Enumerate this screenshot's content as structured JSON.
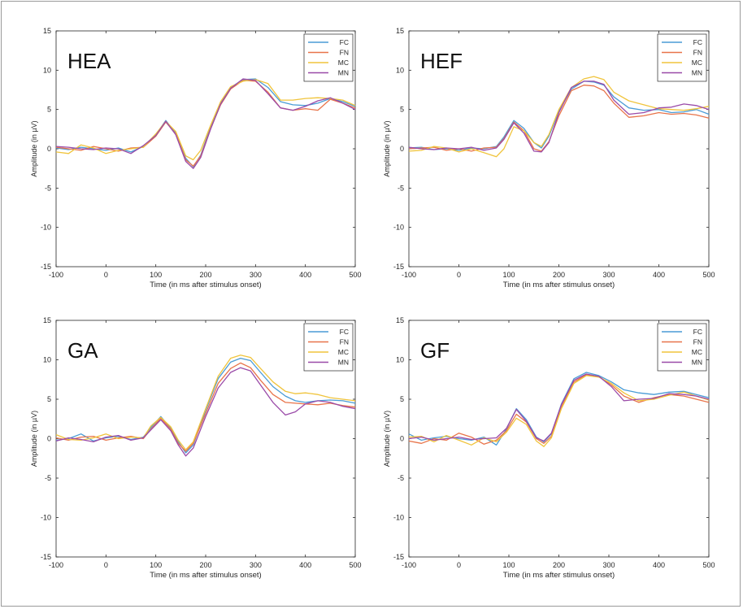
{
  "series_style": [
    {
      "name": "FC",
      "color": "#4a9cd6"
    },
    {
      "name": "FN",
      "color": "#e8744a"
    },
    {
      "name": "MC",
      "color": "#f0c43c"
    },
    {
      "name": "MN",
      "color": "#9a4aa8"
    }
  ],
  "chart_data": [
    {
      "type": "line",
      "title": "HEA",
      "xlabel": "Time (in ms after stimulus onset)",
      "ylabel": "Amplitude (in µV)",
      "xlim": [
        -100,
        500
      ],
      "ylim": [
        -15,
        15
      ],
      "xticks": [
        -100,
        0,
        100,
        200,
        300,
        400,
        500
      ],
      "yticks": [
        15,
        10,
        5,
        0,
        -5,
        -10,
        -15
      ],
      "legend": "top-right",
      "x": [
        -100,
        -75,
        -50,
        -25,
        0,
        25,
        50,
        75,
        100,
        120,
        140,
        160,
        175,
        190,
        210,
        230,
        250,
        275,
        300,
        325,
        350,
        375,
        400,
        425,
        450,
        475,
        500
      ],
      "series": [
        {
          "name": "FC",
          "values": [
            0.1,
            -0.1,
            0.2,
            0.0,
            -0.2,
            0.1,
            -0.4,
            0.3,
            1.8,
            3.6,
            2.0,
            -1.2,
            -2.3,
            -0.8,
            2.8,
            5.8,
            7.8,
            8.8,
            8.9,
            7.8,
            6.0,
            5.6,
            5.5,
            5.8,
            6.4,
            6.0,
            5.4
          ]
        },
        {
          "name": "FN",
          "values": [
            0.2,
            0.0,
            -0.2,
            0.3,
            0.0,
            -0.3,
            0.1,
            0.2,
            1.6,
            3.4,
            1.9,
            -1.4,
            -2.2,
            -0.9,
            2.6,
            5.6,
            7.6,
            8.7,
            8.6,
            7.2,
            5.2,
            4.9,
            5.1,
            4.9,
            6.3,
            5.8,
            5.2
          ]
        },
        {
          "name": "MC",
          "values": [
            -0.4,
            -0.6,
            0.5,
            0.1,
            -0.6,
            -0.2,
            0.0,
            0.2,
            1.9,
            3.5,
            2.2,
            -0.9,
            -1.4,
            -0.2,
            3.0,
            6.0,
            7.9,
            8.6,
            8.8,
            8.3,
            6.2,
            6.2,
            6.4,
            6.5,
            6.4,
            6.2,
            5.5
          ]
        },
        {
          "name": "MN",
          "values": [
            0.3,
            0.2,
            0.0,
            -0.1,
            0.1,
            0.0,
            -0.6,
            0.4,
            1.7,
            3.5,
            1.8,
            -1.6,
            -2.5,
            -1.1,
            2.5,
            5.7,
            7.7,
            8.9,
            8.7,
            7.0,
            5.2,
            4.9,
            5.4,
            6.1,
            6.5,
            5.8,
            5.0
          ]
        }
      ]
    },
    {
      "type": "line",
      "title": "HEF",
      "xlabel": "Time (in ms after stimulus onset)",
      "ylabel": "Amplitude (in µV)",
      "xlim": [
        -100,
        500
      ],
      "ylim": [
        -15,
        15
      ],
      "xticks": [
        -100,
        0,
        100,
        200,
        300,
        400,
        500
      ],
      "yticks": [
        15,
        10,
        5,
        0,
        -5,
        -10,
        -15
      ],
      "legend": "top-right",
      "x": [
        -100,
        -75,
        -50,
        -25,
        0,
        25,
        50,
        75,
        90,
        110,
        130,
        150,
        165,
        180,
        200,
        225,
        250,
        270,
        290,
        310,
        340,
        370,
        400,
        425,
        450,
        475,
        500
      ],
      "series": [
        {
          "name": "FC",
          "values": [
            0.1,
            0.2,
            -0.1,
            0.0,
            -0.2,
            0.1,
            0.0,
            0.3,
            1.5,
            3.6,
            2.6,
            0.8,
            0.1,
            1.6,
            4.8,
            7.6,
            8.6,
            8.5,
            8.1,
            6.6,
            5.2,
            4.9,
            5.0,
            4.6,
            4.7,
            5.0,
            4.4
          ]
        },
        {
          "name": "FN",
          "values": [
            0.0,
            0.1,
            0.2,
            -0.2,
            0.0,
            -0.3,
            0.1,
            0.2,
            1.3,
            3.4,
            2.3,
            0.0,
            -0.3,
            0.9,
            4.2,
            7.4,
            8.1,
            8.0,
            7.4,
            5.8,
            4.0,
            4.2,
            4.6,
            4.4,
            4.5,
            4.3,
            3.9
          ]
        },
        {
          "name": "MC",
          "values": [
            -0.3,
            -0.2,
            0.3,
            0.1,
            -0.4,
            0.0,
            -0.5,
            -1.0,
            0.0,
            2.8,
            2.3,
            0.8,
            0.3,
            1.8,
            5.0,
            7.8,
            8.9,
            9.2,
            8.8,
            7.2,
            6.1,
            5.6,
            5.1,
            5.0,
            4.9,
            5.1,
            5.4
          ]
        },
        {
          "name": "MN",
          "values": [
            0.2,
            0.0,
            -0.1,
            0.1,
            0.0,
            0.2,
            -0.2,
            0.1,
            1.2,
            3.3,
            2.0,
            -0.3,
            -0.4,
            0.8,
            4.6,
            7.8,
            8.6,
            8.6,
            8.2,
            6.2,
            4.4,
            4.6,
            5.2,
            5.3,
            5.7,
            5.5,
            5.0
          ]
        }
      ]
    },
    {
      "type": "line",
      "title": "GA",
      "xlabel": "Time (in ms after stimulus onset)",
      "ylabel": "Amplitude (in µV)",
      "xlim": [
        -100,
        500
      ],
      "ylim": [
        -15,
        15
      ],
      "xticks": [
        -100,
        0,
        100,
        200,
        300,
        400,
        500
      ],
      "yticks": [
        15,
        10,
        5,
        0,
        -5,
        -10,
        -15
      ],
      "legend": "top-right",
      "x": [
        -100,
        -75,
        -50,
        -25,
        0,
        25,
        50,
        75,
        90,
        110,
        130,
        145,
        160,
        175,
        200,
        225,
        250,
        270,
        290,
        310,
        335,
        360,
        380,
        400,
        425,
        450,
        475,
        500
      ],
      "series": [
        {
          "name": "FC",
          "values": [
            -0.2,
            0.0,
            0.6,
            -0.3,
            0.1,
            0.3,
            -0.1,
            0.2,
            1.4,
            2.8,
            1.3,
            -0.4,
            -1.8,
            -0.8,
            3.6,
            7.6,
            9.7,
            10.2,
            9.9,
            8.4,
            6.6,
            5.4,
            4.8,
            4.6,
            4.8,
            4.9,
            4.8,
            4.5
          ]
        },
        {
          "name": "FN",
          "values": [
            0.1,
            -0.2,
            0.2,
            0.3,
            -0.2,
            0.1,
            0.3,
            0.0,
            1.2,
            2.6,
            1.2,
            -0.6,
            -1.6,
            -0.6,
            3.2,
            7.0,
            8.9,
            9.6,
            9.0,
            7.4,
            5.6,
            4.6,
            4.5,
            4.4,
            4.3,
            4.5,
            4.2,
            4.0
          ]
        },
        {
          "name": "MC",
          "values": [
            0.5,
            -0.1,
            -0.2,
            0.1,
            0.6,
            0.0,
            0.2,
            0.1,
            1.6,
            2.7,
            1.5,
            -0.2,
            -1.4,
            -0.4,
            3.8,
            7.9,
            10.2,
            10.6,
            10.3,
            8.9,
            7.2,
            6.0,
            5.7,
            5.8,
            5.6,
            5.2,
            5.0,
            4.8
          ]
        },
        {
          "name": "MN",
          "values": [
            -0.3,
            0.1,
            -0.1,
            -0.4,
            0.2,
            0.4,
            -0.2,
            0.1,
            1.1,
            2.4,
            1.0,
            -0.8,
            -2.2,
            -1.2,
            2.8,
            6.4,
            8.4,
            9.0,
            8.6,
            6.8,
            4.6,
            3.0,
            3.4,
            4.4,
            4.8,
            4.6,
            4.1,
            3.8
          ]
        }
      ]
    },
    {
      "type": "line",
      "title": "GF",
      "xlabel": "Time (in ms after stimulus onset)",
      "ylabel": "Amplitude (in µV)",
      "xlim": [
        -100,
        500
      ],
      "ylim": [
        -15,
        15
      ],
      "xticks": [
        -100,
        0,
        100,
        200,
        300,
        400,
        500
      ],
      "yticks": [
        15,
        10,
        5,
        0,
        -5,
        -10,
        -15
      ],
      "legend": "top-right",
      "x": [
        -100,
        -75,
        -50,
        -25,
        0,
        25,
        50,
        75,
        95,
        115,
        135,
        155,
        170,
        185,
        205,
        230,
        255,
        280,
        305,
        330,
        360,
        390,
        420,
        450,
        475,
        500
      ],
      "series": [
        {
          "name": "FC",
          "values": [
            0.6,
            -0.2,
            0.1,
            0.3,
            0.0,
            -0.2,
            0.2,
            -0.8,
            1.2,
            3.8,
            2.4,
            0.2,
            -0.4,
            0.6,
            4.4,
            7.6,
            8.4,
            8.0,
            7.2,
            6.2,
            5.8,
            5.6,
            5.9,
            6.0,
            5.6,
            5.2
          ]
        },
        {
          "name": "FN",
          "values": [
            -0.3,
            -0.6,
            0.0,
            -0.2,
            0.7,
            0.2,
            -0.7,
            -0.2,
            1.0,
            3.1,
            2.1,
            0.0,
            -0.6,
            0.3,
            4.0,
            7.2,
            8.1,
            7.9,
            6.8,
            5.4,
            4.6,
            5.2,
            5.6,
            5.4,
            5.0,
            4.6
          ]
        },
        {
          "name": "MC",
          "values": [
            0.2,
            0.3,
            -0.4,
            0.4,
            -0.2,
            -0.8,
            0.1,
            -0.4,
            0.8,
            2.6,
            1.8,
            -0.3,
            -1.0,
            0.1,
            3.8,
            7.0,
            8.0,
            7.8,
            7.0,
            5.8,
            4.8,
            5.0,
            5.5,
            5.9,
            5.4,
            4.9
          ]
        },
        {
          "name": "MN",
          "values": [
            0.0,
            0.2,
            -0.2,
            0.0,
            0.2,
            -0.1,
            0.0,
            0.1,
            1.3,
            3.7,
            2.2,
            0.1,
            -0.3,
            0.7,
            4.3,
            7.4,
            8.2,
            7.9,
            6.6,
            4.8,
            5.0,
            5.1,
            5.7,
            5.6,
            5.4,
            5.0
          ]
        }
      ]
    }
  ]
}
